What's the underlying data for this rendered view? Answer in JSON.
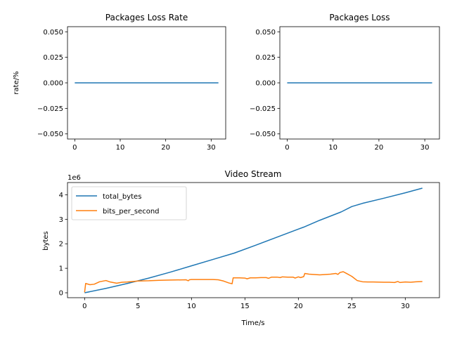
{
  "chart_data": [
    {
      "type": "line",
      "title": "Packages Loss Rate",
      "xlabel": "",
      "ylabel": "rate/%",
      "xlim": [
        -1.6,
        33.2
      ],
      "ylim": [
        -0.055,
        0.055
      ],
      "xticks": [
        "0",
        "10",
        "20",
        "30"
      ],
      "xtick_values": [
        0,
        10,
        20,
        30
      ],
      "yticks": [
        "−0.050",
        "−0.025",
        "0.000",
        "0.025",
        "0.050"
      ],
      "ytick_values": [
        -0.05,
        -0.025,
        0,
        0.025,
        0.05
      ],
      "grid": false,
      "series": [
        {
          "color": "#1f77b4",
          "x": [
            0,
            31.6
          ],
          "y": [
            0,
            0
          ]
        }
      ]
    },
    {
      "type": "line",
      "title": "Packages Loss",
      "xlabel": "",
      "ylabel": "",
      "xlim": [
        -1.6,
        33.2
      ],
      "ylim": [
        -0.055,
        0.055
      ],
      "xticks": [
        "0",
        "10",
        "20",
        "30"
      ],
      "xtick_values": [
        0,
        10,
        20,
        30
      ],
      "yticks": [
        "−0.050",
        "−0.025",
        "0.000",
        "0.025",
        "0.050"
      ],
      "ytick_values": [
        -0.05,
        -0.025,
        0,
        0.025,
        0.05
      ],
      "grid": false,
      "series": [
        {
          "color": "#1f77b4",
          "x": [
            0,
            31.6
          ],
          "y": [
            0,
            0
          ]
        }
      ]
    },
    {
      "type": "line",
      "title": "Video Stream",
      "xlabel": "Time/s",
      "ylabel": "bytes",
      "offset_label": "1e6",
      "xlim": [
        -1.6,
        33.2
      ],
      "ylim": [
        -0.2,
        4.5
      ],
      "xticks": [
        "0",
        "5",
        "10",
        "15",
        "20",
        "25",
        "30"
      ],
      "xtick_values": [
        0,
        5,
        10,
        15,
        20,
        25,
        30
      ],
      "yticks": [
        "0",
        "1",
        "2",
        "3",
        "4"
      ],
      "ytick_values": [
        0,
        1,
        2,
        3,
        4
      ],
      "grid": false,
      "legend": "top-left",
      "series": [
        {
          "name": "total_bytes",
          "color": "#1f77b4",
          "x": [
            0,
            2,
            4,
            6,
            8,
            10,
            12,
            14,
            16,
            18,
            20,
            20.5,
            22,
            24,
            25,
            26,
            28,
            30,
            31.6
          ],
          "y": [
            0,
            0.18,
            0.38,
            0.6,
            0.84,
            1.1,
            1.36,
            1.62,
            1.94,
            2.27,
            2.6,
            2.68,
            2.96,
            3.3,
            3.52,
            3.65,
            3.86,
            4.08,
            4.27
          ]
        },
        {
          "name": "bits_per_second",
          "color": "#ff7f0e",
          "x": [
            0,
            0.1,
            0.5,
            0.9,
            1.4,
            2.0,
            2.4,
            3.0,
            3.5,
            4.0,
            5.0,
            6.0,
            7.0,
            8.0,
            9.5,
            9.7,
            9.8,
            10,
            11,
            12,
            12.5,
            13,
            13.5,
            13.8,
            13.9,
            14.5,
            15,
            15.2,
            15.5,
            16,
            16.5,
            17,
            17.2,
            17.5,
            18,
            18.3,
            18.5,
            19,
            19.5,
            19.7,
            20,
            20.2,
            20.5,
            20.6,
            21,
            22,
            23,
            23.5,
            23.7,
            23.9,
            24.2,
            24.5,
            25,
            25.5,
            26,
            26.5,
            27,
            28,
            28.5,
            29,
            29.3,
            29.5,
            30,
            30.5,
            31,
            31.6
          ],
          "y": [
            0.02,
            0.38,
            0.33,
            0.35,
            0.45,
            0.5,
            0.44,
            0.39,
            0.43,
            0.44,
            0.48,
            0.49,
            0.51,
            0.52,
            0.53,
            0.49,
            0.53,
            0.54,
            0.54,
            0.54,
            0.53,
            0.48,
            0.4,
            0.37,
            0.61,
            0.61,
            0.6,
            0.57,
            0.61,
            0.61,
            0.62,
            0.62,
            0.59,
            0.64,
            0.64,
            0.62,
            0.65,
            0.64,
            0.64,
            0.6,
            0.65,
            0.62,
            0.66,
            0.79,
            0.76,
            0.73,
            0.76,
            0.79,
            0.75,
            0.83,
            0.86,
            0.79,
            0.67,
            0.5,
            0.45,
            0.44,
            0.44,
            0.43,
            0.43,
            0.42,
            0.46,
            0.42,
            0.44,
            0.43,
            0.45,
            0.46
          ]
        }
      ]
    }
  ]
}
